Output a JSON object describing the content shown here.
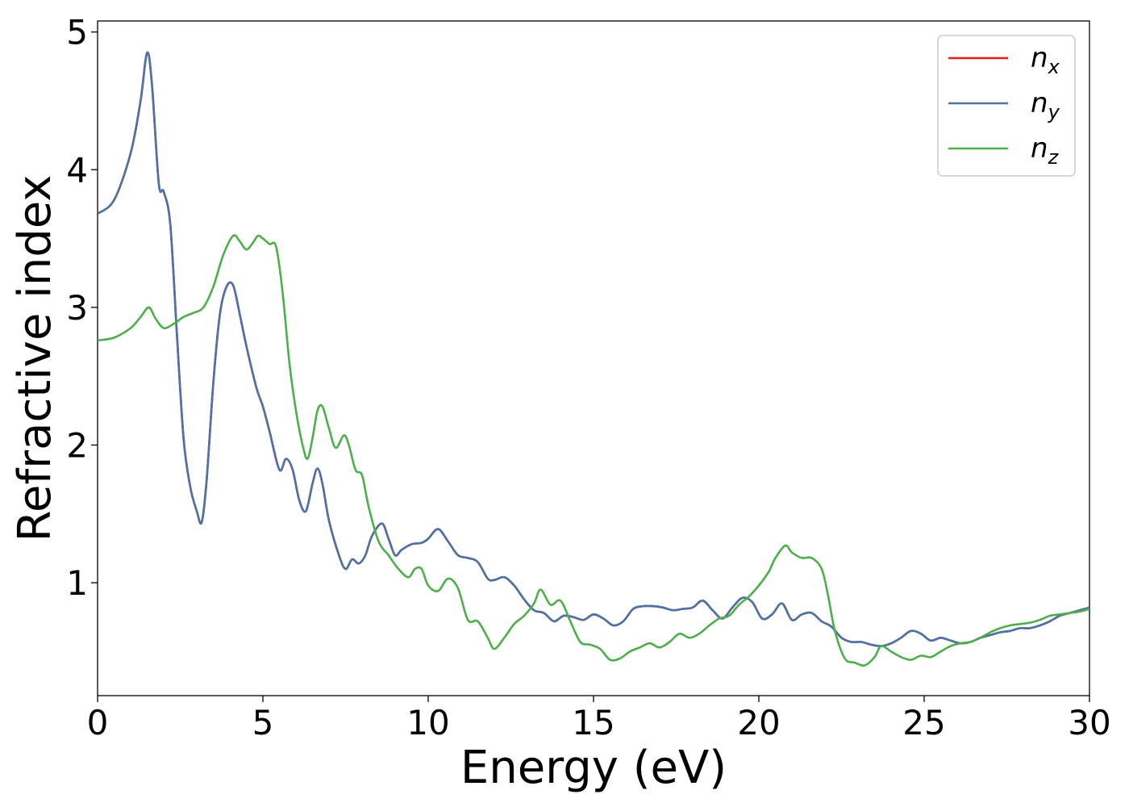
{
  "chart_data": {
    "type": "line",
    "xlabel": "Energy (eV)",
    "ylabel": "Refractive index",
    "xlim": [
      0,
      30
    ],
    "ylim": [
      0.18,
      5.08
    ],
    "xticks": [
      0,
      5,
      10,
      15,
      20,
      25,
      30
    ],
    "yticks": [
      1,
      2,
      3,
      4,
      5
    ],
    "grid": false,
    "legend_position": "top-right",
    "series": [
      {
        "name": "n_x",
        "legend_base": "n",
        "legend_sub": "x",
        "color": "#e41a1c",
        "x": [
          0,
          0.5,
          1.0,
          1.3,
          1.5,
          1.65,
          1.85,
          2.0,
          2.2,
          2.4,
          2.6,
          2.8,
          3.0,
          3.15,
          3.3,
          3.5,
          3.7,
          3.9,
          4.1,
          4.3,
          4.5,
          4.8,
          5.0,
          5.2,
          5.5,
          5.7,
          5.9,
          6.1,
          6.3,
          6.5,
          6.65,
          6.8,
          7.0,
          7.3,
          7.5,
          7.7,
          7.9,
          8.1,
          8.3,
          8.6,
          8.8,
          9.0,
          9.2,
          9.5,
          9.8,
          10.0,
          10.3,
          10.6,
          10.9,
          11.2,
          11.5,
          11.8,
          12.0,
          12.3,
          12.6,
          12.9,
          13.2,
          13.5,
          13.8,
          14.1,
          14.4,
          14.7,
          15.0,
          15.3,
          15.6,
          15.9,
          16.2,
          16.5,
          16.8,
          17.1,
          17.4,
          17.7,
          18.0,
          18.3,
          18.6,
          18.9,
          19.2,
          19.5,
          19.8,
          20.1,
          20.4,
          20.7,
          21.0,
          21.3,
          21.6,
          21.9,
          22.2,
          22.5,
          22.8,
          23.1,
          23.4,
          23.7,
          24.0,
          24.3,
          24.6,
          24.9,
          25.2,
          25.5,
          25.8,
          26.1,
          26.4,
          26.7,
          27.0,
          27.3,
          27.6,
          27.9,
          28.2,
          28.5,
          28.8,
          29.1,
          29.4,
          29.7,
          30.0
        ],
        "y": [
          3.68,
          3.78,
          4.12,
          4.5,
          4.85,
          4.6,
          3.9,
          3.84,
          3.6,
          2.8,
          2.05,
          1.7,
          1.52,
          1.44,
          1.75,
          2.45,
          2.95,
          3.15,
          3.16,
          2.95,
          2.72,
          2.42,
          2.28,
          2.1,
          1.82,
          1.9,
          1.82,
          1.6,
          1.52,
          1.72,
          1.83,
          1.72,
          1.45,
          1.2,
          1.1,
          1.17,
          1.14,
          1.2,
          1.34,
          1.43,
          1.32,
          1.2,
          1.24,
          1.28,
          1.29,
          1.32,
          1.39,
          1.3,
          1.2,
          1.18,
          1.15,
          1.03,
          1.02,
          1.04,
          0.98,
          0.88,
          0.8,
          0.78,
          0.72,
          0.76,
          0.75,
          0.73,
          0.77,
          0.74,
          0.69,
          0.72,
          0.81,
          0.83,
          0.83,
          0.82,
          0.8,
          0.81,
          0.82,
          0.87,
          0.8,
          0.74,
          0.82,
          0.89,
          0.86,
          0.74,
          0.77,
          0.85,
          0.73,
          0.77,
          0.78,
          0.72,
          0.68,
          0.6,
          0.57,
          0.57,
          0.55,
          0.54,
          0.56,
          0.6,
          0.65,
          0.63,
          0.58,
          0.6,
          0.58,
          0.56,
          0.57,
          0.6,
          0.62,
          0.64,
          0.65,
          0.67,
          0.67,
          0.69,
          0.72,
          0.76,
          0.78,
          0.8,
          0.82
        ]
      },
      {
        "name": "n_y",
        "legend_base": "n",
        "legend_sub": "y",
        "color": "#4a73a8",
        "x": [
          0,
          0.5,
          1.0,
          1.3,
          1.5,
          1.65,
          1.85,
          2.0,
          2.2,
          2.4,
          2.6,
          2.8,
          3.0,
          3.15,
          3.3,
          3.5,
          3.7,
          3.9,
          4.1,
          4.3,
          4.5,
          4.8,
          5.0,
          5.2,
          5.5,
          5.7,
          5.9,
          6.1,
          6.3,
          6.5,
          6.65,
          6.8,
          7.0,
          7.3,
          7.5,
          7.7,
          7.9,
          8.1,
          8.3,
          8.6,
          8.8,
          9.0,
          9.2,
          9.5,
          9.8,
          10.0,
          10.3,
          10.6,
          10.9,
          11.2,
          11.5,
          11.8,
          12.0,
          12.3,
          12.6,
          12.9,
          13.2,
          13.5,
          13.8,
          14.1,
          14.4,
          14.7,
          15.0,
          15.3,
          15.6,
          15.9,
          16.2,
          16.5,
          16.8,
          17.1,
          17.4,
          17.7,
          18.0,
          18.3,
          18.6,
          18.9,
          19.2,
          19.5,
          19.8,
          20.1,
          20.4,
          20.7,
          21.0,
          21.3,
          21.6,
          21.9,
          22.2,
          22.5,
          22.8,
          23.1,
          23.4,
          23.7,
          24.0,
          24.3,
          24.6,
          24.9,
          25.2,
          25.5,
          25.8,
          26.1,
          26.4,
          26.7,
          27.0,
          27.3,
          27.6,
          27.9,
          28.2,
          28.5,
          28.8,
          29.1,
          29.4,
          29.7,
          30.0
        ],
        "y": [
          3.68,
          3.78,
          4.12,
          4.5,
          4.85,
          4.6,
          3.9,
          3.84,
          3.6,
          2.8,
          2.05,
          1.7,
          1.52,
          1.44,
          1.75,
          2.45,
          2.95,
          3.15,
          3.16,
          2.95,
          2.72,
          2.42,
          2.28,
          2.1,
          1.82,
          1.9,
          1.82,
          1.6,
          1.52,
          1.72,
          1.83,
          1.72,
          1.45,
          1.2,
          1.1,
          1.17,
          1.14,
          1.2,
          1.34,
          1.43,
          1.32,
          1.2,
          1.24,
          1.28,
          1.29,
          1.32,
          1.39,
          1.3,
          1.2,
          1.18,
          1.15,
          1.03,
          1.02,
          1.04,
          0.98,
          0.88,
          0.8,
          0.78,
          0.72,
          0.76,
          0.75,
          0.73,
          0.77,
          0.74,
          0.69,
          0.72,
          0.81,
          0.83,
          0.83,
          0.82,
          0.8,
          0.81,
          0.82,
          0.87,
          0.8,
          0.74,
          0.82,
          0.89,
          0.86,
          0.74,
          0.77,
          0.85,
          0.73,
          0.77,
          0.78,
          0.72,
          0.68,
          0.6,
          0.57,
          0.57,
          0.55,
          0.54,
          0.56,
          0.6,
          0.65,
          0.63,
          0.58,
          0.6,
          0.58,
          0.56,
          0.57,
          0.6,
          0.62,
          0.64,
          0.65,
          0.67,
          0.67,
          0.69,
          0.72,
          0.76,
          0.78,
          0.8,
          0.82
        ]
      },
      {
        "name": "n_z",
        "legend_base": "n",
        "legend_sub": "z",
        "color": "#4daf4a",
        "x": [
          0,
          0.5,
          1.0,
          1.3,
          1.55,
          1.75,
          2.0,
          2.3,
          2.6,
          2.9,
          3.2,
          3.5,
          3.8,
          4.1,
          4.3,
          4.5,
          4.7,
          4.85,
          5.0,
          5.2,
          5.4,
          5.6,
          5.8,
          6.0,
          6.2,
          6.35,
          6.5,
          6.65,
          6.8,
          7.0,
          7.2,
          7.45,
          7.6,
          7.8,
          8.0,
          8.2,
          8.5,
          8.8,
          9.1,
          9.4,
          9.6,
          9.8,
          10.0,
          10.3,
          10.6,
          10.9,
          11.2,
          11.5,
          11.8,
          12.0,
          12.3,
          12.6,
          12.9,
          13.2,
          13.4,
          13.7,
          14.0,
          14.3,
          14.6,
          14.9,
          15.2,
          15.5,
          15.8,
          16.1,
          16.4,
          16.7,
          17.0,
          17.3,
          17.6,
          17.9,
          18.2,
          18.5,
          18.8,
          19.1,
          19.4,
          19.7,
          20.0,
          20.3,
          20.5,
          20.8,
          21.0,
          21.3,
          21.6,
          21.9,
          22.1,
          22.3,
          22.6,
          22.9,
          23.2,
          23.5,
          23.7,
          24.0,
          24.3,
          24.6,
          24.9,
          25.2,
          25.5,
          25.8,
          26.1,
          26.4,
          26.7,
          27.0,
          27.3,
          27.6,
          27.9,
          28.2,
          28.5,
          28.8,
          29.1,
          29.4,
          29.7,
          30.0
        ],
        "y": [
          2.76,
          2.78,
          2.85,
          2.93,
          3.0,
          2.92,
          2.85,
          2.88,
          2.93,
          2.96,
          3.0,
          3.15,
          3.38,
          3.52,
          3.48,
          3.42,
          3.47,
          3.52,
          3.5,
          3.46,
          3.44,
          3.1,
          2.6,
          2.25,
          2.0,
          1.9,
          2.05,
          2.25,
          2.28,
          2.12,
          1.98,
          2.07,
          2.0,
          1.82,
          1.78,
          1.55,
          1.3,
          1.2,
          1.1,
          1.04,
          1.1,
          1.1,
          0.98,
          0.94,
          1.03,
          0.96,
          0.73,
          0.72,
          0.6,
          0.52,
          0.6,
          0.7,
          0.76,
          0.85,
          0.95,
          0.84,
          0.87,
          0.72,
          0.57,
          0.55,
          0.52,
          0.44,
          0.45,
          0.5,
          0.53,
          0.56,
          0.53,
          0.57,
          0.63,
          0.6,
          0.63,
          0.69,
          0.74,
          0.76,
          0.84,
          0.9,
          0.98,
          1.08,
          1.18,
          1.27,
          1.22,
          1.18,
          1.18,
          1.1,
          0.9,
          0.65,
          0.45,
          0.42,
          0.4,
          0.46,
          0.54,
          0.5,
          0.46,
          0.44,
          0.47,
          0.46,
          0.5,
          0.54,
          0.56,
          0.57,
          0.6,
          0.64,
          0.67,
          0.69,
          0.7,
          0.71,
          0.73,
          0.76,
          0.77,
          0.78,
          0.79,
          0.81
        ]
      }
    ]
  }
}
